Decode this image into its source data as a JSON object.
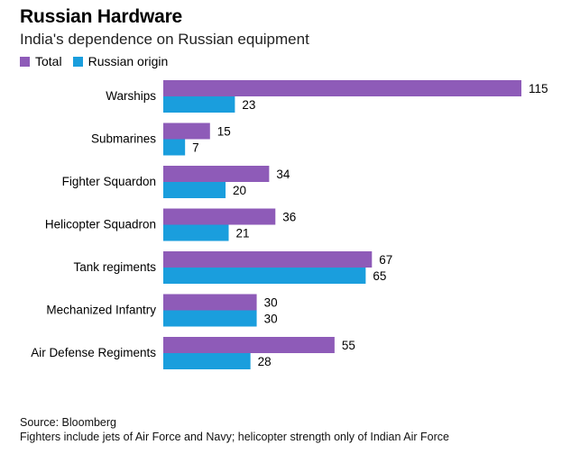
{
  "colors": {
    "total": "#8e5bb8",
    "russian": "#1a9edd"
  },
  "chart_data": {
    "type": "bar",
    "orientation": "horizontal",
    "title": "Russian Hardware",
    "subtitle": "India's dependence on Russian equipment",
    "categories": [
      "Warships",
      "Submarines",
      "Fighter Squardon",
      "Helicopter Squadron",
      "Tank regiments",
      "Mechanized Infantry",
      "Air Defense Regiments"
    ],
    "series": [
      {
        "name": "Total",
        "values": [
          115,
          15,
          34,
          36,
          67,
          30,
          55
        ]
      },
      {
        "name": "Russian origin",
        "values": [
          23,
          7,
          20,
          21,
          65,
          30,
          28
        ]
      }
    ],
    "xlim": [
      0,
      115
    ],
    "grid": false,
    "legend": "top-left",
    "data_labels": true
  },
  "footer": {
    "source": "Source: Bloomberg",
    "note": "Fighters include jets of Air Force and Navy; helicopter strength only of Indian Air Force"
  }
}
